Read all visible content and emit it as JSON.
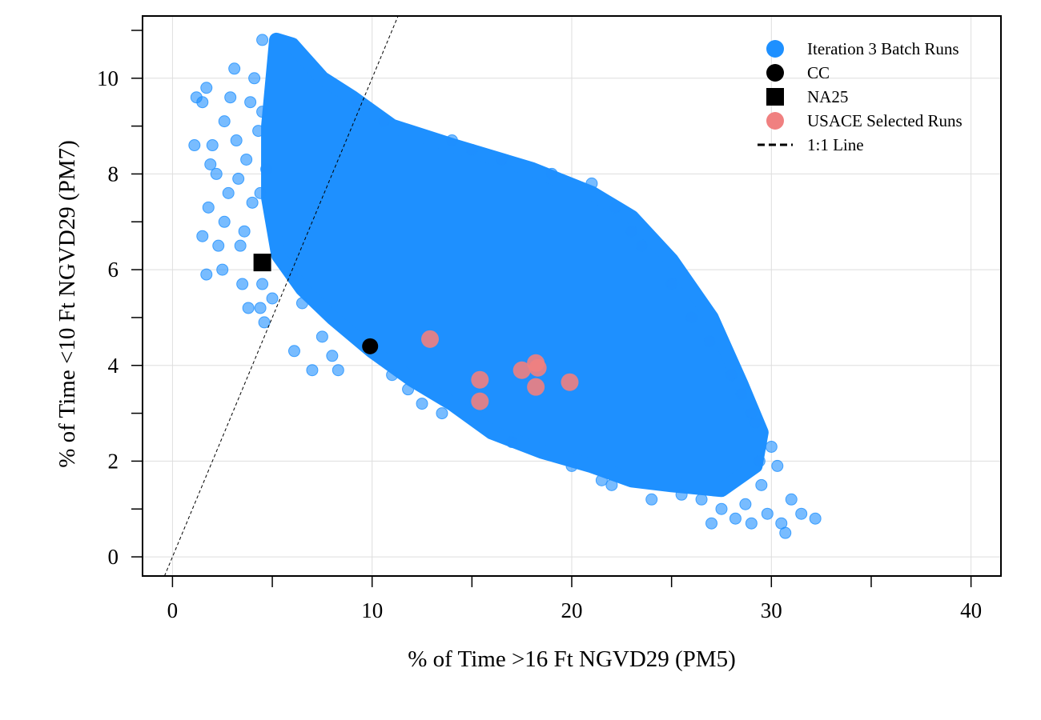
{
  "chart_data": {
    "type": "scatter",
    "xlabel": "% of Time >16 Ft NGVD29 (PM5)",
    "ylabel": "% of Time <10 Ft NGVD29 (PM7)",
    "xlim": [
      -1.5,
      41.5
    ],
    "ylim": [
      -0.4,
      11.3
    ],
    "xticks": [
      0,
      10,
      20,
      30,
      40
    ],
    "xticks_minor": [
      5,
      15,
      25,
      35
    ],
    "yticks": [
      0,
      2,
      4,
      6,
      8,
      10
    ],
    "yticks_minor": [
      1,
      3,
      5,
      7,
      9,
      11
    ],
    "grid": true,
    "legend_position": "top-right",
    "legend": [
      {
        "label": "Iteration 3 Batch Runs",
        "marker": "circle",
        "color": "#1e90ff"
      },
      {
        "label": "CC",
        "marker": "circle",
        "color": "#000000"
      },
      {
        "label": "NA25",
        "marker": "square",
        "color": "#000000"
      },
      {
        "label": "USACE Selected Runs",
        "marker": "circle",
        "color": "#f08080"
      },
      {
        "label": "1:1 Line",
        "marker": "dashed-line",
        "color": "#000000"
      }
    ],
    "series": [
      {
        "name": "Iteration 3 Batch Runs",
        "color": "#1e90ff",
        "cloud_outline": [
          [
            5.2,
            10.8
          ],
          [
            6.0,
            10.7
          ],
          [
            7.5,
            10.0
          ],
          [
            9.0,
            9.6
          ],
          [
            11.0,
            9.0
          ],
          [
            14.0,
            8.6
          ],
          [
            18.0,
            8.1
          ],
          [
            21.0,
            7.6
          ],
          [
            23.0,
            7.1
          ],
          [
            25.0,
            6.2
          ],
          [
            27.0,
            5.0
          ],
          [
            28.5,
            3.6
          ],
          [
            29.5,
            2.6
          ],
          [
            29.2,
            1.9
          ],
          [
            27.5,
            1.4
          ],
          [
            25.0,
            1.5
          ],
          [
            23.0,
            1.6
          ],
          [
            21.0,
            1.9
          ],
          [
            18.5,
            2.2
          ],
          [
            16.0,
            2.6
          ],
          [
            14.0,
            3.2
          ],
          [
            12.0,
            3.7
          ],
          [
            10.0,
            4.3
          ],
          [
            8.0,
            5.0
          ],
          [
            6.5,
            5.6
          ],
          [
            5.3,
            6.3
          ],
          [
            4.8,
            7.5
          ],
          [
            4.8,
            9.0
          ]
        ],
        "points": [
          [
            1.1,
            8.6
          ],
          [
            1.2,
            9.6
          ],
          [
            1.5,
            9.5
          ],
          [
            1.7,
            9.8
          ],
          [
            1.5,
            6.7
          ],
          [
            1.7,
            5.9
          ],
          [
            1.8,
            7.3
          ],
          [
            1.9,
            8.2
          ],
          [
            2.0,
            8.6
          ],
          [
            2.2,
            8.0
          ],
          [
            2.3,
            6.5
          ],
          [
            2.5,
            6.0
          ],
          [
            2.6,
            7.0
          ],
          [
            2.6,
            9.1
          ],
          [
            2.8,
            7.6
          ],
          [
            2.9,
            9.6
          ],
          [
            3.1,
            10.2
          ],
          [
            3.2,
            8.7
          ],
          [
            3.3,
            7.9
          ],
          [
            3.4,
            6.5
          ],
          [
            3.5,
            5.7
          ],
          [
            3.6,
            6.8
          ],
          [
            3.8,
            5.2
          ],
          [
            3.9,
            9.5
          ],
          [
            3.7,
            8.3
          ],
          [
            4.0,
            7.4
          ],
          [
            4.3,
            8.9
          ],
          [
            4.5,
            5.7
          ],
          [
            4.6,
            4.9
          ],
          [
            4.4,
            5.2
          ],
          [
            4.1,
            10.0
          ],
          [
            4.5,
            9.3
          ],
          [
            4.7,
            8.1
          ],
          [
            4.4,
            7.6
          ],
          [
            4.5,
            10.8
          ],
          [
            5.0,
            5.4
          ],
          [
            6.0,
            5.9
          ],
          [
            6.1,
            4.3
          ],
          [
            6.5,
            5.3
          ],
          [
            7.0,
            3.9
          ],
          [
            7.5,
            4.6
          ],
          [
            8.0,
            4.2
          ],
          [
            8.3,
            3.9
          ],
          [
            9.2,
            9.5
          ],
          [
            10.6,
            9.1
          ],
          [
            11.0,
            3.8
          ],
          [
            11.8,
            3.5
          ],
          [
            12.5,
            3.2
          ],
          [
            13.5,
            3.0
          ],
          [
            14.0,
            8.7
          ],
          [
            15.0,
            8.5
          ],
          [
            16.5,
            8.3
          ],
          [
            17.0,
            2.4
          ],
          [
            19.0,
            8.0
          ],
          [
            20.0,
            1.9
          ],
          [
            21.0,
            7.8
          ],
          [
            21.5,
            1.6
          ],
          [
            22.0,
            1.5
          ],
          [
            22.2,
            7.3
          ],
          [
            23.0,
            6.8
          ],
          [
            23.5,
            6.5
          ],
          [
            24.0,
            1.2
          ],
          [
            25.0,
            5.7
          ],
          [
            25.5,
            1.3
          ],
          [
            26.0,
            5.0
          ],
          [
            26.5,
            1.2
          ],
          [
            26.9,
            4.5
          ],
          [
            27.0,
            0.7
          ],
          [
            27.5,
            1.0
          ],
          [
            28.0,
            3.8
          ],
          [
            28.2,
            0.8
          ],
          [
            28.5,
            3.4
          ],
          [
            28.7,
            1.1
          ],
          [
            29.0,
            0.7
          ],
          [
            29.0,
            3.0
          ],
          [
            29.2,
            2.8
          ],
          [
            29.4,
            2.0
          ],
          [
            29.5,
            1.5
          ],
          [
            29.8,
            0.9
          ],
          [
            30.0,
            2.3
          ],
          [
            30.3,
            1.9
          ],
          [
            30.5,
            0.7
          ],
          [
            30.7,
            0.5
          ],
          [
            31.0,
            1.2
          ],
          [
            31.5,
            0.9
          ],
          [
            32.2,
            0.8
          ]
        ]
      },
      {
        "name": "CC",
        "color": "#000000",
        "points": [
          [
            9.9,
            4.4
          ]
        ]
      },
      {
        "name": "NA25",
        "color": "#000000",
        "points": [
          [
            4.5,
            6.15
          ]
        ]
      },
      {
        "name": "USACE Selected Runs",
        "color": "#f08080",
        "points": [
          [
            12.9,
            4.55
          ],
          [
            15.4,
            3.7
          ],
          [
            15.4,
            3.25
          ],
          [
            17.5,
            3.9
          ],
          [
            18.2,
            4.05
          ],
          [
            18.3,
            3.95
          ],
          [
            18.2,
            3.55
          ],
          [
            19.9,
            3.65
          ]
        ]
      },
      {
        "name": "1:1 Line",
        "color": "#000000",
        "line": [
          [
            -0.4,
            -0.4
          ],
          [
            11.3,
            11.3
          ]
        ]
      }
    ]
  }
}
